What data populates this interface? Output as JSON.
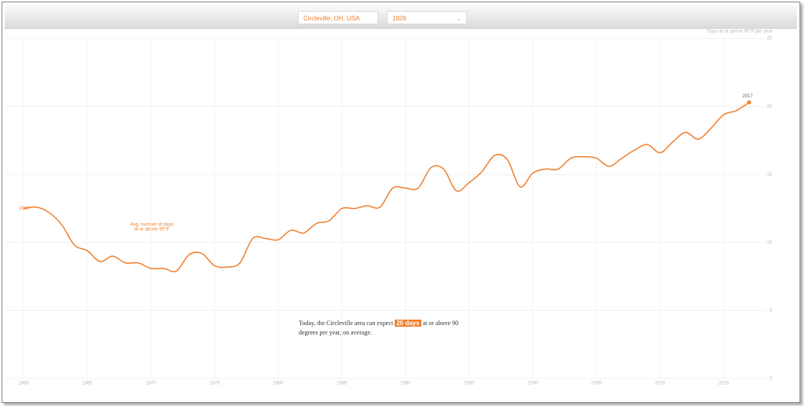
{
  "controls": {
    "location": "Circleville, OH, USA",
    "year": "1926"
  },
  "chart_data": {
    "type": "line",
    "y_axis_label": "Days at or above 90°F per year",
    "line_label": [
      "Avg. number of days",
      "at or above 90°F"
    ],
    "summary": {
      "before": "Today, the Circleville area can expect",
      "highlight": "20 days",
      "after": "at or above 90 degrees per year, on average."
    },
    "x": [
      1960,
      1961,
      1962,
      1963,
      1964,
      1965,
      1966,
      1967,
      1968,
      1969,
      1970,
      1971,
      1972,
      1973,
      1974,
      1975,
      1976,
      1977,
      1978,
      1979,
      1980,
      1981,
      1982,
      1983,
      1984,
      1985,
      1986,
      1987,
      1988,
      1989,
      1990,
      1991,
      1992,
      1993,
      1994,
      1995,
      1996,
      1997,
      1998,
      1999,
      2000,
      2001,
      2002,
      2003,
      2004,
      2005,
      2006,
      2007,
      2008,
      2009,
      2010,
      2011,
      2012,
      2013,
      2014,
      2015,
      2016,
      2017
    ],
    "series": [
      {
        "name": "Avg. number of days at or above 90°F",
        "color": "#f07f2e",
        "values": [
          12.5,
          12.6,
          12.2,
          11.3,
          9.8,
          9.4,
          8.6,
          9.0,
          8.5,
          8.5,
          8.1,
          8.1,
          7.9,
          9.1,
          9.2,
          8.3,
          8.2,
          8.5,
          10.3,
          10.3,
          10.2,
          10.9,
          10.7,
          11.4,
          11.6,
          12.5,
          12.5,
          12.7,
          12.6,
          14.0,
          14.0,
          14.0,
          15.5,
          15.4,
          13.8,
          14.4,
          15.2,
          16.4,
          16.1,
          14.1,
          15.1,
          15.4,
          15.4,
          16.2,
          16.3,
          16.2,
          15.6,
          16.2,
          16.8,
          17.2,
          16.6,
          17.4,
          18.1,
          17.6,
          18.4,
          19.4,
          19.7,
          20.3
        ]
      }
    ],
    "xlim": [
      1960,
      2017
    ],
    "xticks": [
      1960,
      1965,
      1970,
      1975,
      1980,
      1985,
      1990,
      1995,
      2000,
      2005,
      2010,
      2015
    ],
    "ylim": [
      0,
      25
    ],
    "yticks": [
      0,
      5,
      10,
      15,
      20,
      25
    ],
    "grid": true
  }
}
